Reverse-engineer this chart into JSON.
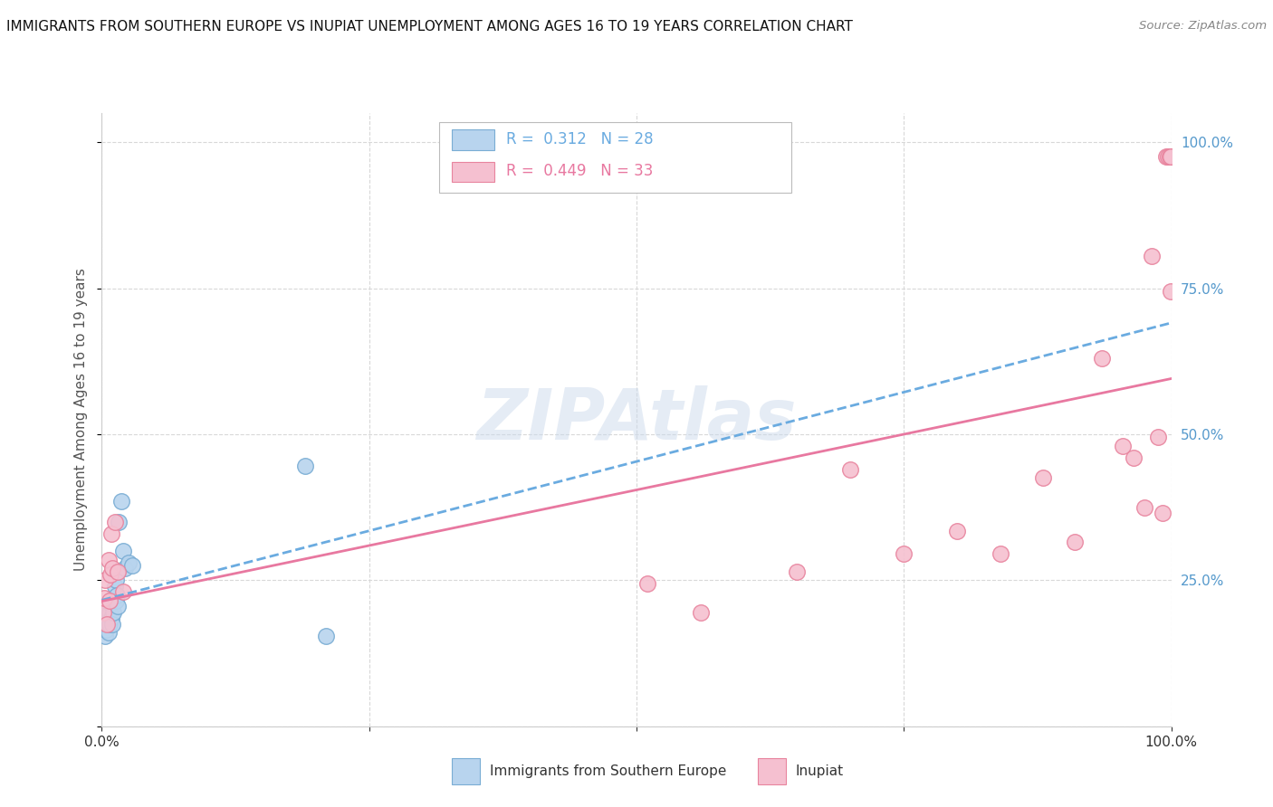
{
  "title": "IMMIGRANTS FROM SOUTHERN EUROPE VS INUPIAT UNEMPLOYMENT AMONG AGES 16 TO 19 YEARS CORRELATION CHART",
  "source": "Source: ZipAtlas.com",
  "ylabel": "Unemployment Among Ages 16 to 19 years",
  "legend1_label": "Immigrants from Southern Europe",
  "legend2_label": "Inupiat",
  "R1": 0.312,
  "N1": 28,
  "R2": 0.449,
  "N2": 33,
  "color1_fill": "#b8d4ee",
  "color1_edge": "#7aadd4",
  "color2_fill": "#f5c0d0",
  "color2_edge": "#e8849e",
  "line1_color": "#6aabe0",
  "line2_color": "#e878a0",
  "watermark_color": "#ccdaec",
  "watermark_text": "ZIPAtlas",
  "grid_color": "#d8d8d8",
  "right_tick_color": "#5599cc",
  "blue_points_x": [
    0.001,
    0.002,
    0.003,
    0.003,
    0.004,
    0.005,
    0.005,
    0.006,
    0.007,
    0.007,
    0.008,
    0.009,
    0.01,
    0.01,
    0.011,
    0.012,
    0.013,
    0.013,
    0.014,
    0.015,
    0.016,
    0.018,
    0.02,
    0.022,
    0.025,
    0.028,
    0.19,
    0.21
  ],
  "blue_points_y": [
    0.175,
    0.19,
    0.155,
    0.195,
    0.165,
    0.185,
    0.2,
    0.16,
    0.175,
    0.195,
    0.21,
    0.185,
    0.175,
    0.22,
    0.195,
    0.24,
    0.215,
    0.25,
    0.225,
    0.205,
    0.35,
    0.385,
    0.3,
    0.27,
    0.28,
    0.275,
    0.445,
    0.155
  ],
  "pink_points_x": [
    0.001,
    0.002,
    0.003,
    0.005,
    0.006,
    0.007,
    0.008,
    0.009,
    0.01,
    0.012,
    0.015,
    0.02,
    0.51,
    0.56,
    0.65,
    0.7,
    0.75,
    0.8,
    0.84,
    0.88,
    0.91,
    0.935,
    0.955,
    0.965,
    0.975,
    0.982,
    0.988,
    0.992,
    0.995,
    0.997,
    0.999,
    0.9995,
    0.9999
  ],
  "pink_points_y": [
    0.195,
    0.22,
    0.25,
    0.175,
    0.285,
    0.215,
    0.26,
    0.33,
    0.27,
    0.35,
    0.265,
    0.23,
    0.245,
    0.195,
    0.265,
    0.44,
    0.295,
    0.335,
    0.295,
    0.425,
    0.315,
    0.63,
    0.48,
    0.46,
    0.375,
    0.805,
    0.495,
    0.365,
    0.975,
    0.975,
    0.975,
    0.975,
    0.745
  ]
}
